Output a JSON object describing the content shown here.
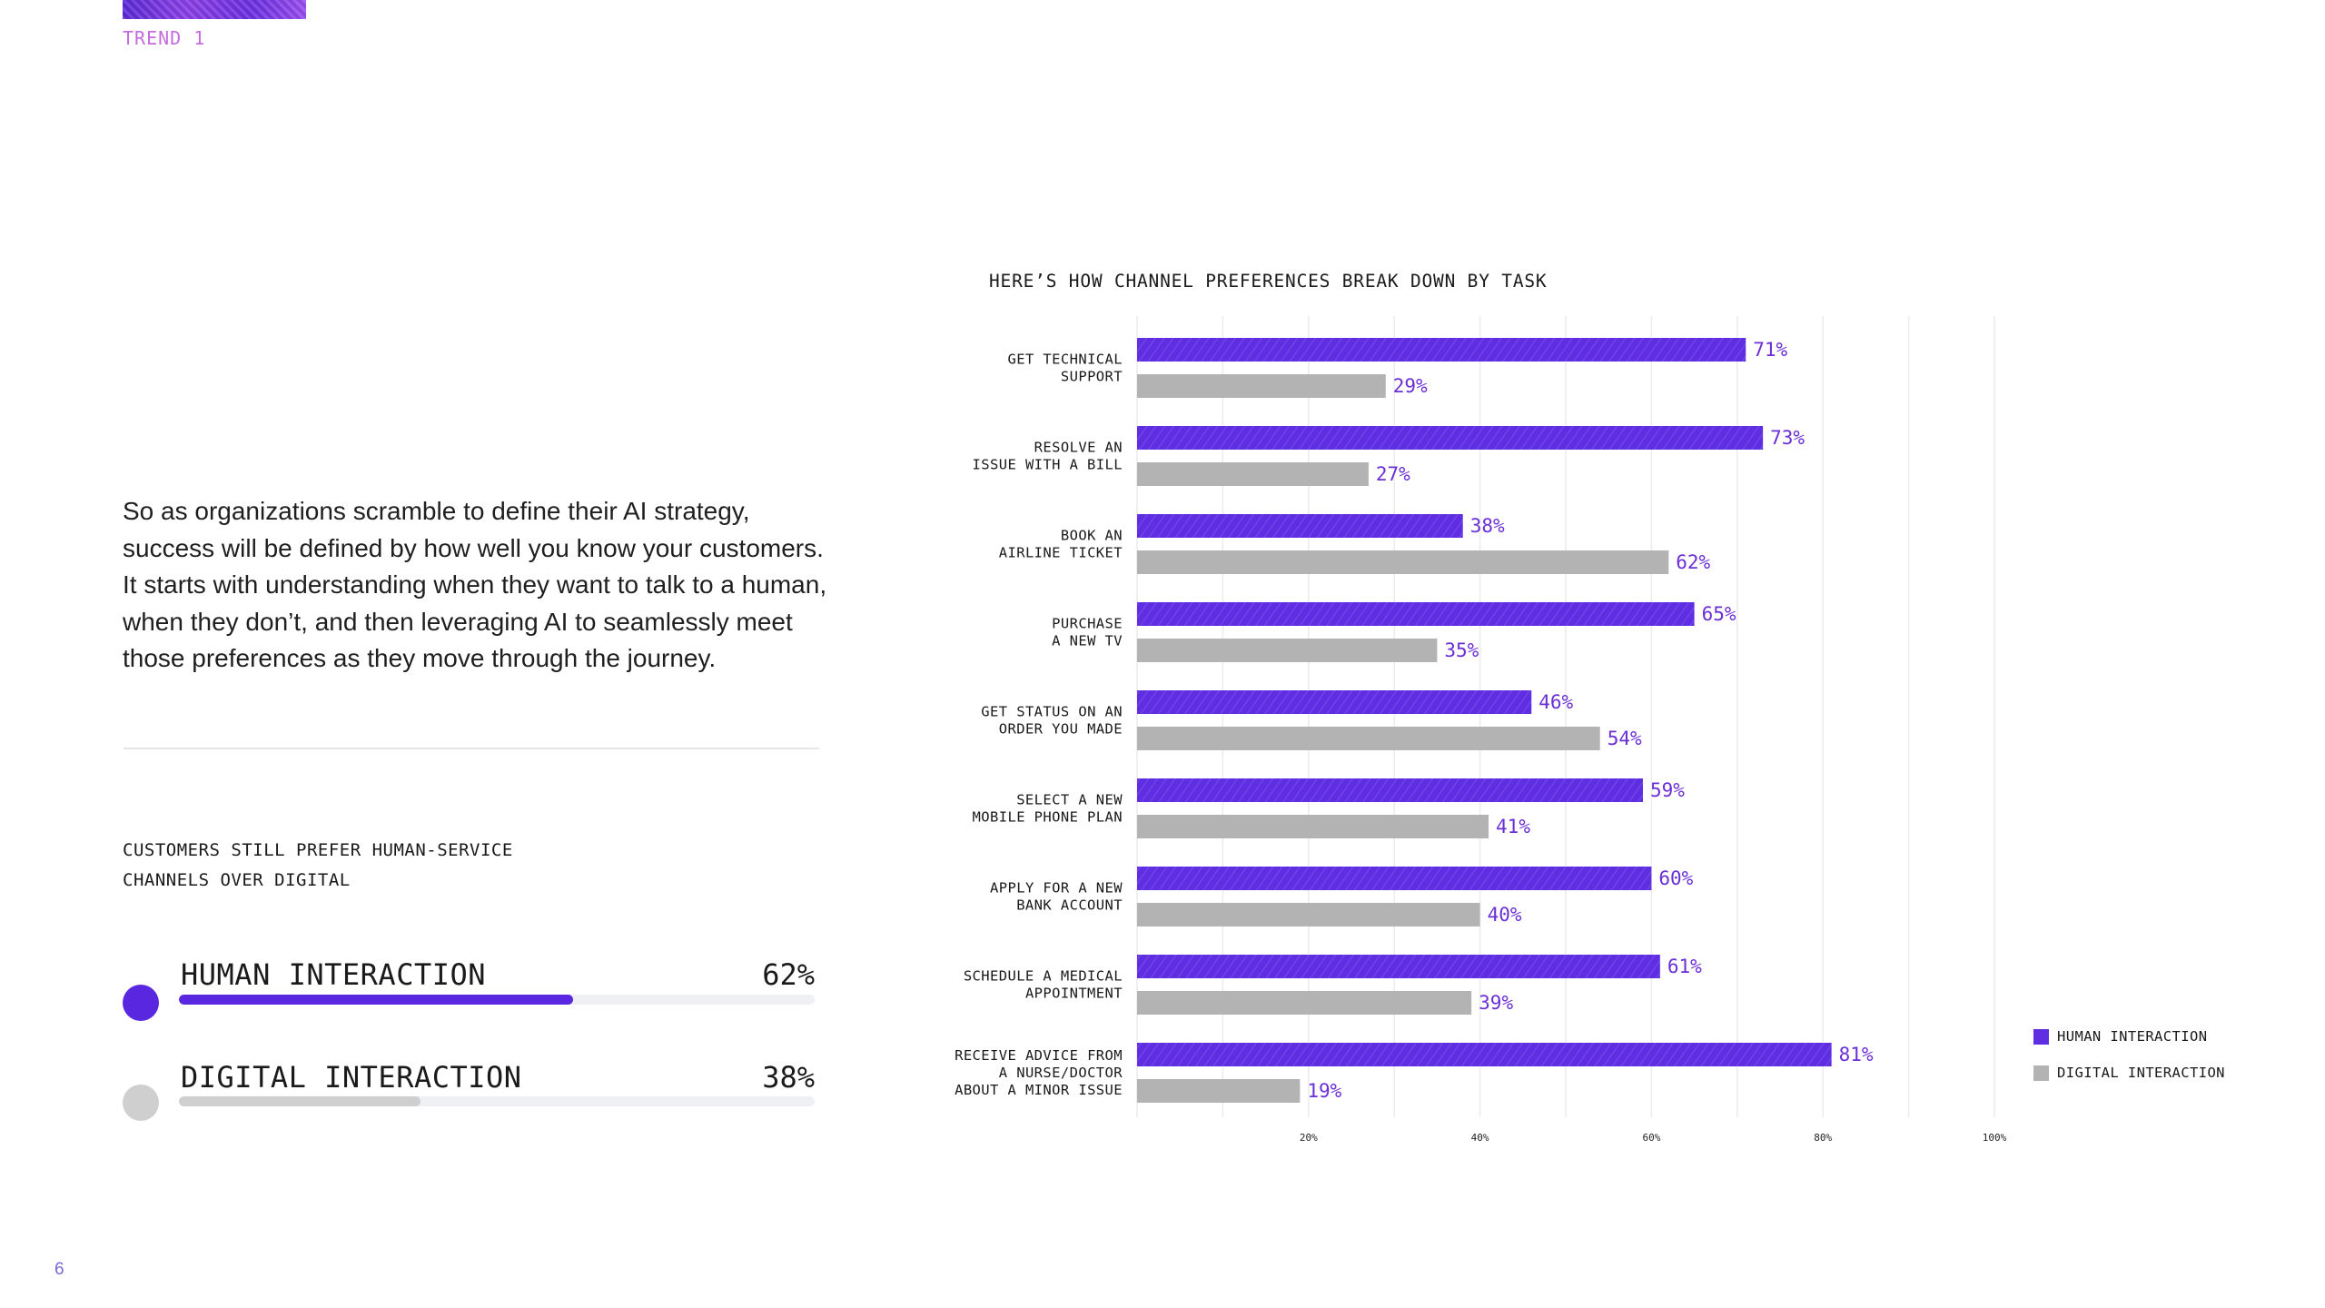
{
  "header": {
    "trend_label": "TREND 1"
  },
  "body_text": [
    "So as organizations scramble to define their AI strategy,",
    "success will be defined by how well you know your customers.",
    "It starts with understanding when they want to talk to a human,",
    "when they don’t, and then leveraging AI to seamlessly meet",
    "those preferences as they move through the journey."
  ],
  "summary": {
    "title_lines": [
      "CUSTOMERS STILL PREFER HUMAN-SERVICE",
      "CHANNELS OVER DIGITAL"
    ],
    "metrics": [
      {
        "label": "HUMAN INTERACTION",
        "value_text": "62%",
        "fraction": 0.62,
        "color": "#5a27e0"
      },
      {
        "label": "DIGITAL INTERACTION",
        "value_text": "38%",
        "fraction": 0.38,
        "color": "#cfcfcf"
      }
    ]
  },
  "colors": {
    "human": "#5f2ee2",
    "digital": "#b3b3b3",
    "value_text": "#6b2fd6",
    "trend_text": "#c56be0",
    "grid": "#ececec"
  },
  "chart_data": {
    "type": "bar",
    "orientation": "horizontal",
    "title": "HERE’S HOW CHANNEL PREFERENCES BREAK DOWN BY TASK",
    "categories": [
      [
        "GET TECHNICAL",
        "SUPPORT"
      ],
      [
        "RESOLVE AN",
        "ISSUE WITH A BILL"
      ],
      [
        "BOOK AN",
        "AIRLINE TICKET"
      ],
      [
        "PURCHASE",
        "A NEW TV"
      ],
      [
        "GET STATUS ON AN",
        "ORDER YOU MADE"
      ],
      [
        "SELECT A NEW",
        "MOBILE PHONE PLAN"
      ],
      [
        "APPLY FOR A NEW",
        "BANK ACCOUNT"
      ],
      [
        "SCHEDULE A MEDICAL",
        "APPOINTMENT"
      ],
      [
        "RECEIVE ADVICE FROM",
        "A NURSE/DOCTOR",
        "ABOUT A MINOR ISSUE"
      ]
    ],
    "series": [
      {
        "name": "HUMAN INTERACTION",
        "values": [
          71,
          73,
          38,
          65,
          46,
          59,
          60,
          61,
          81
        ]
      },
      {
        "name": "DIGITAL INTERACTION",
        "values": [
          29,
          27,
          62,
          35,
          54,
          41,
          40,
          39,
          19
        ]
      }
    ],
    "value_suffix": "%",
    "xlim": [
      0,
      100
    ],
    "x_ticks": [
      "20%",
      "40%",
      "60%",
      "80%",
      "100%"
    ],
    "x_tick_values": [
      20,
      40,
      60,
      80,
      100
    ],
    "grid": true,
    "legend_position": "bottom-right"
  },
  "page": {
    "number": "6"
  }
}
